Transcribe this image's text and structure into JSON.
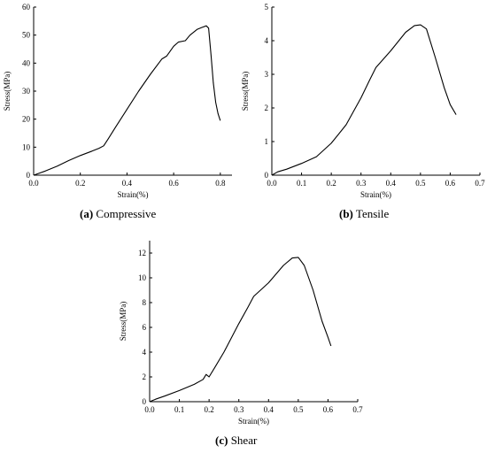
{
  "chart_data": [
    {
      "type": "line",
      "caption_letter": "(a)",
      "caption_text": "Compressive",
      "xlabel": "Strain(%)",
      "ylabel": "Stress(MPa)",
      "xlim": [
        0,
        0.85
      ],
      "ylim": [
        0,
        60
      ],
      "xticks": [
        "0.0",
        "0.2",
        "0.4",
        "0.6",
        "0.8"
      ],
      "yticks": [
        "0",
        "10",
        "20",
        "30",
        "40",
        "50",
        "60"
      ],
      "series": [
        {
          "x": [
            0,
            0.02,
            0.05,
            0.1,
            0.15,
            0.2,
            0.25,
            0.28,
            0.3,
            0.32,
            0.35,
            0.4,
            0.45,
            0.5,
            0.55,
            0.57,
            0.6,
            0.62,
            0.65,
            0.67,
            0.7,
            0.72,
            0.74,
            0.75,
            0.76,
            0.77,
            0.78,
            0.79,
            0.8
          ],
          "y": [
            0,
            0.6,
            1.5,
            3.2,
            5.2,
            7.0,
            8.6,
            9.6,
            10.5,
            13.0,
            17.0,
            23.5,
            30.0,
            36.0,
            41.5,
            42.5,
            46.0,
            47.5,
            48.0,
            50.0,
            52.0,
            52.7,
            53.3,
            52.5,
            43.0,
            33.0,
            26.0,
            22.0,
            19.5
          ]
        }
      ]
    },
    {
      "type": "line",
      "caption_letter": "(b)",
      "caption_text": "Tensile",
      "xlabel": "Strain(%)",
      "ylabel": "Stress(MPa)",
      "xlim": [
        0,
        0.7
      ],
      "ylim": [
        0,
        5
      ],
      "xticks": [
        "0.0",
        "0.1",
        "0.2",
        "0.3",
        "0.4",
        "0.5",
        "0.6",
        "0.7"
      ],
      "yticks": [
        "0",
        "1",
        "2",
        "3",
        "4",
        "5"
      ],
      "series": [
        {
          "x": [
            0,
            0.02,
            0.05,
            0.1,
            0.15,
            0.2,
            0.25,
            0.3,
            0.33,
            0.35,
            0.4,
            0.45,
            0.48,
            0.5,
            0.52,
            0.55,
            0.58,
            0.6,
            0.62
          ],
          "y": [
            0,
            0.1,
            0.18,
            0.35,
            0.55,
            0.95,
            1.5,
            2.3,
            2.85,
            3.2,
            3.7,
            4.25,
            4.45,
            4.47,
            4.35,
            3.5,
            2.6,
            2.1,
            1.8
          ]
        }
      ]
    },
    {
      "type": "line",
      "caption_letter": "(c)",
      "caption_text": "Shear",
      "xlabel": "Strain(%)",
      "ylabel": "Stress(MPa)",
      "xlim": [
        0,
        0.7
      ],
      "ylim": [
        0,
        13
      ],
      "xticks": [
        "0.0",
        "0.1",
        "0.2",
        "0.3",
        "0.4",
        "0.5",
        "0.6",
        "0.7"
      ],
      "yticks": [
        "0",
        "2",
        "4",
        "6",
        "8",
        "10",
        "12"
      ],
      "series": [
        {
          "x": [
            0,
            0.02,
            0.05,
            0.1,
            0.15,
            0.18,
            0.19,
            0.2,
            0.22,
            0.25,
            0.3,
            0.33,
            0.35,
            0.4,
            0.45,
            0.48,
            0.5,
            0.52,
            0.55,
            0.58,
            0.6,
            0.61
          ],
          "y": [
            0,
            0.2,
            0.45,
            0.9,
            1.4,
            1.8,
            2.2,
            2.0,
            2.8,
            4.0,
            6.3,
            7.6,
            8.5,
            9.6,
            11.0,
            11.6,
            11.65,
            11.0,
            9.0,
            6.5,
            5.2,
            4.5
          ]
        }
      ]
    }
  ]
}
